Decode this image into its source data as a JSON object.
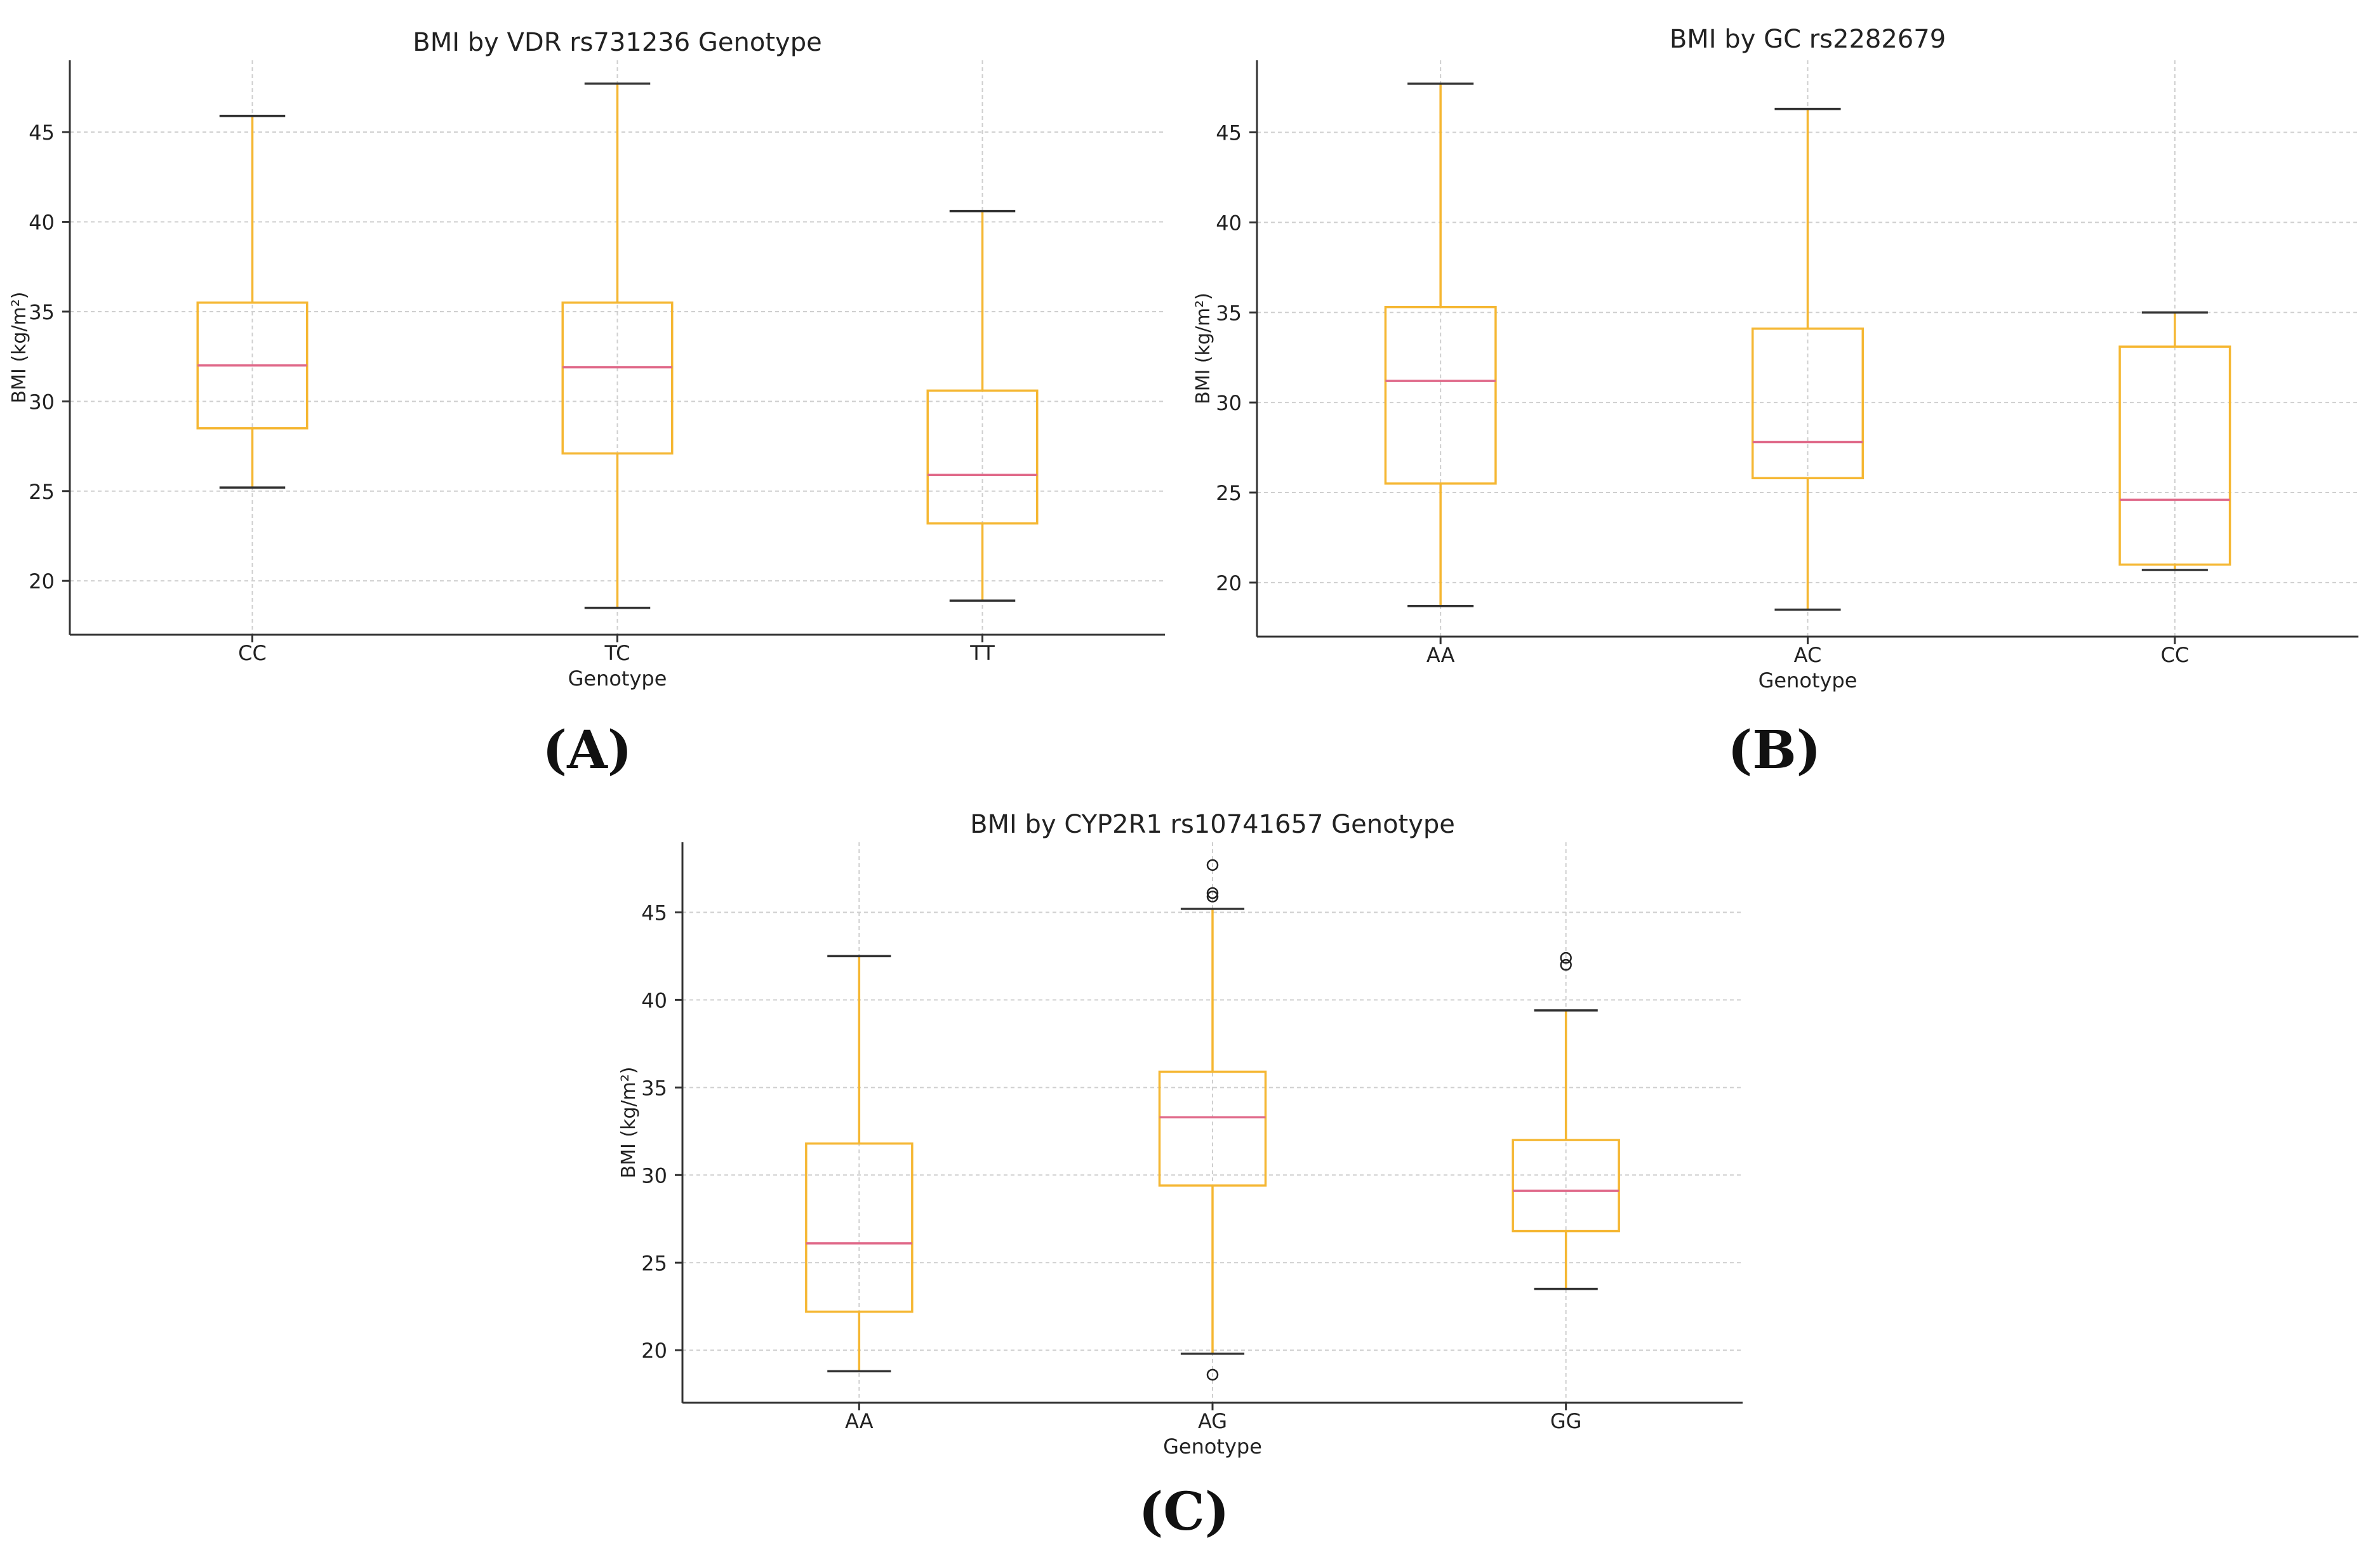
{
  "colors": {
    "box": "#f5b733",
    "whisker": "#f5b733",
    "cap": "#333333",
    "median": "#e06a8a",
    "grid": "#cfcfcf",
    "axis": "#333333",
    "text": "#222222"
  },
  "chart_data": [
    {
      "type": "boxplot",
      "panel_label": "(A)",
      "title": "BMI by VDR rs731236 Genotype",
      "xlabel": "Genotype",
      "ylabel": "BMI (kg/m²)",
      "ylim": [
        17,
        49
      ],
      "yticks": [
        20,
        25,
        30,
        35,
        40,
        45
      ],
      "grid": true,
      "categories": [
        "CC",
        "TC",
        "TT"
      ],
      "boxes": [
        {
          "category": "CC",
          "whislo": 25.2,
          "q1": 28.5,
          "med": 32.0,
          "q3": 35.5,
          "whishi": 45.9,
          "fliers": []
        },
        {
          "category": "TC",
          "whislo": 18.5,
          "q1": 27.1,
          "med": 31.9,
          "q3": 35.5,
          "whishi": 47.7,
          "fliers": []
        },
        {
          "category": "TT",
          "whislo": 18.9,
          "q1": 23.2,
          "med": 25.9,
          "q3": 30.6,
          "whishi": 40.6,
          "fliers": []
        }
      ]
    },
    {
      "type": "boxplot",
      "panel_label": "(B)",
      "title": "BMI by GC rs2282679",
      "xlabel": "Genotype",
      "ylabel": "BMI (kg/m²)",
      "ylim": [
        17,
        49
      ],
      "yticks": [
        20,
        25,
        30,
        35,
        40,
        45
      ],
      "grid": true,
      "categories": [
        "AA",
        "AC",
        "CC"
      ],
      "boxes": [
        {
          "category": "AA",
          "whislo": 18.7,
          "q1": 25.5,
          "med": 31.2,
          "q3": 35.3,
          "whishi": 47.7,
          "fliers": []
        },
        {
          "category": "AC",
          "whislo": 18.5,
          "q1": 25.8,
          "med": 27.8,
          "q3": 34.1,
          "whishi": 46.3,
          "fliers": []
        },
        {
          "category": "CC",
          "whislo": 20.7,
          "q1": 21.0,
          "med": 24.6,
          "q3": 33.1,
          "whishi": 35.0,
          "fliers": []
        }
      ]
    },
    {
      "type": "boxplot",
      "panel_label": "(C)",
      "title": "BMI by CYP2R1 rs10741657 Genotype",
      "xlabel": "Genotype",
      "ylabel": "BMI (kg/m²)",
      "ylim": [
        17,
        49
      ],
      "yticks": [
        20,
        25,
        30,
        35,
        40,
        45
      ],
      "grid": true,
      "categories": [
        "AA",
        "AG",
        "GG"
      ],
      "boxes": [
        {
          "category": "AA",
          "whislo": 18.8,
          "q1": 22.2,
          "med": 26.1,
          "q3": 31.8,
          "whishi": 42.5,
          "fliers": []
        },
        {
          "category": "AG",
          "whislo": 19.8,
          "q1": 29.4,
          "med": 33.3,
          "q3": 35.9,
          "whishi": 45.2,
          "fliers": [
            18.6,
            45.9,
            46.1,
            47.7
          ]
        },
        {
          "category": "GG",
          "whislo": 23.5,
          "q1": 26.8,
          "med": 29.1,
          "q3": 32.0,
          "whishi": 39.4,
          "fliers": [
            42.0,
            42.4
          ]
        }
      ]
    }
  ]
}
